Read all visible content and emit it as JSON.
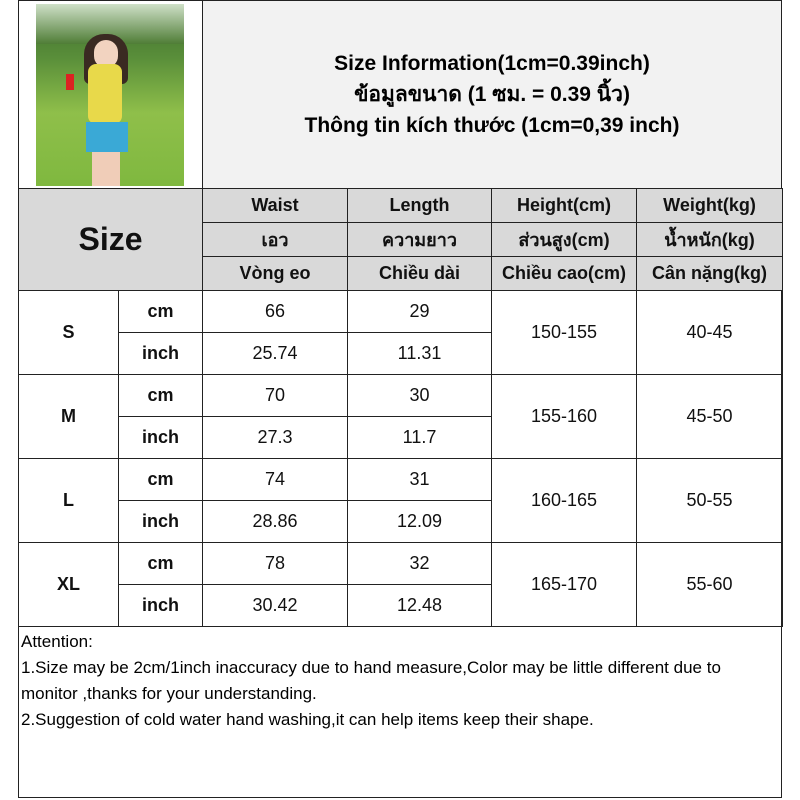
{
  "header": {
    "title_en": "Size Information(1cm=0.39inch)",
    "title_th": "ข้อมูลขนาด (1 ซม. = 0.39 นิ้ว)",
    "title_vi": "Thông tin kích thước (1cm=0,39 inch)"
  },
  "table": {
    "size_label": "Size",
    "columns": [
      {
        "en": "Waist",
        "th": "เอว",
        "vi": "Vòng eo"
      },
      {
        "en": "Length",
        "th": "ความยาว",
        "vi": "Chiều dài"
      },
      {
        "en": "Height(cm)",
        "th": "ส่วนสูง(cm)",
        "vi": "Chiều cao(cm)"
      },
      {
        "en": "Weight(kg)",
        "th": "น้ำหนัก(kg)",
        "vi": "Cân nặng(kg)"
      }
    ],
    "unit_cm": "cm",
    "unit_inch": "inch",
    "rows": [
      {
        "size": "S",
        "waist_cm": "66",
        "length_cm": "29",
        "waist_in": "25.74",
        "length_in": "11.31",
        "height": "150-155",
        "weight": "40-45"
      },
      {
        "size": "M",
        "waist_cm": "70",
        "length_cm": "30",
        "waist_in": "27.3",
        "length_in": "11.7",
        "height": "155-160",
        "weight": "45-50"
      },
      {
        "size": "L",
        "waist_cm": "74",
        "length_cm": "31",
        "waist_in": "28.86",
        "length_in": "12.09",
        "height": "160-165",
        "weight": "50-55"
      },
      {
        "size": "XL",
        "waist_cm": "78",
        "length_cm": "32",
        "waist_in": "30.42",
        "length_in": "12.48",
        "height": "165-170",
        "weight": "55-60"
      }
    ]
  },
  "attention": {
    "heading": "Attention:",
    "note1": "1.Size may be 2cm/1inch inaccuracy due to hand measure,Color may be little different due to monitor ,thanks for your understanding.",
    "note2": "2.Suggestion of cold water hand washing,it can help items keep their shape."
  }
}
